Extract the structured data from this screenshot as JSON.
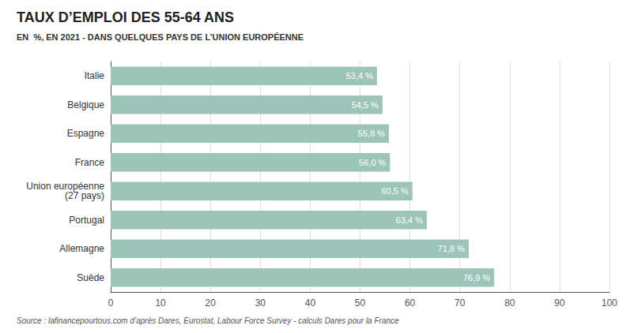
{
  "chart_data": {
    "type": "bar",
    "orientation": "horizontal",
    "title": "TAUX D’EMPLOI DES 55-64 ANS",
    "subtitle": "EN  %, EN 2021 - DANS QUELQUES PAYS DE L’UNION EUROPÉENNE",
    "annotations": [
      "Source : lafinancepourtous.com d’après Dares, Eurostat, Labour Force Survey - calculs Dares pour la France"
    ],
    "categories": [
      "Italie",
      "Belgique",
      "Espagne",
      "France",
      "Union européenne\n(27 pays)",
      "Portugal",
      "Allemagne",
      "Suède"
    ],
    "values": [
      53.4,
      54.5,
      55.8,
      56.0,
      60.5,
      63.4,
      71.8,
      76.9
    ],
    "value_labels": [
      "53,4 %",
      "54,5 %",
      "55,8 %",
      "56,0 %",
      "60,5 %",
      "63,4 %",
      "71,8 %",
      "76,9 %"
    ],
    "data_labels": true,
    "color": "#9dc4b8",
    "xlim": [
      0,
      100
    ],
    "xticks": [
      0,
      10,
      20,
      30,
      40,
      50,
      60,
      70,
      80,
      90,
      100
    ],
    "grid": true
  }
}
